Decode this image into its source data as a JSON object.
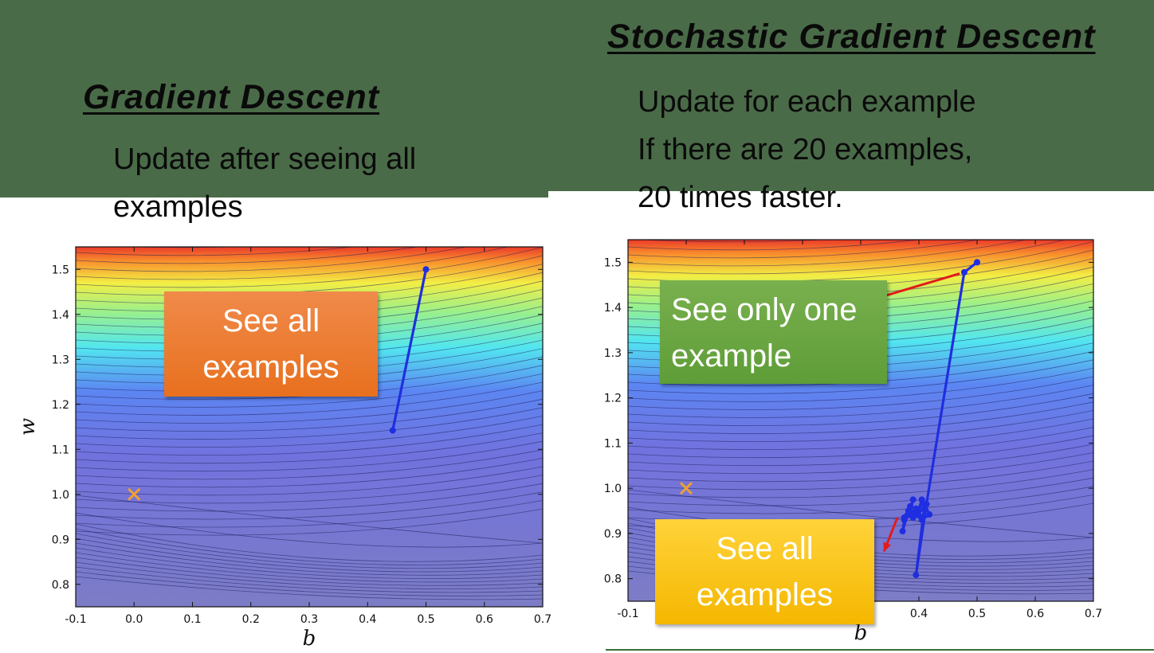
{
  "left": {
    "heading": "Gradient Descent",
    "desc": [
      "Update after seeing all",
      "examples"
    ],
    "callout": [
      "See all",
      "examples"
    ]
  },
  "right": {
    "heading": "Stochastic Gradient Descent",
    "desc": [
      "Update for each example",
      "If there are 20 examples,",
      "20 times faster."
    ],
    "callout_one": [
      "See only one",
      "example"
    ],
    "callout_all": [
      "See all",
      "examples"
    ]
  },
  "colors": {
    "band": "#4a6b48",
    "path": "#1f2ee0",
    "target": "#f0a030",
    "arrow": "#e21b1b"
  },
  "chart_data": [
    {
      "type": "line",
      "xlabel": "b",
      "ylabel": "w",
      "xlim": [
        -0.1,
        0.7
      ],
      "ylim": [
        0.75,
        1.55
      ],
      "xticks": [
        -0.1,
        0.0,
        0.1,
        0.2,
        0.3,
        0.4,
        0.5,
        0.6,
        0.7
      ],
      "yticks": [
        0.8,
        0.9,
        1.0,
        1.1,
        1.2,
        1.3,
        1.4,
        1.5
      ],
      "background": "contour",
      "target": {
        "x": 0.0,
        "y": 1.0
      },
      "series": [
        {
          "x": [
            0.5,
            0.443
          ],
          "y": [
            1.5,
            1.142
          ]
        }
      ]
    },
    {
      "type": "line",
      "xlabel": "b",
      "ylabel": "",
      "xlim": [
        -0.1,
        0.7
      ],
      "ylim": [
        0.75,
        1.55
      ],
      "xticks": [
        -0.1,
        0.0,
        0.1,
        0.2,
        0.3,
        0.4,
        0.5,
        0.6,
        0.7
      ],
      "yticks": [
        0.8,
        0.9,
        1.0,
        1.1,
        1.2,
        1.3,
        1.4,
        1.5
      ],
      "background": "contour",
      "target": {
        "x": 0.0,
        "y": 1.0
      },
      "series": [
        {
          "x": [
            0.5,
            0.478,
            0.413,
            0.395,
            0.41,
            0.418,
            0.405,
            0.41,
            0.398,
            0.405,
            0.4,
            0.39,
            0.395,
            0.385,
            0.39,
            0.38,
            0.385,
            0.375,
            0.382,
            0.372,
            0.375
          ],
          "y": [
            1.5,
            1.478,
            0.965,
            0.808,
            0.965,
            0.942,
            0.93,
            0.955,
            0.945,
            0.975,
            0.94,
            0.935,
            0.955,
            0.945,
            0.975,
            0.94,
            0.96,
            0.935,
            0.95,
            0.905,
            0.93
          ]
        }
      ]
    }
  ]
}
